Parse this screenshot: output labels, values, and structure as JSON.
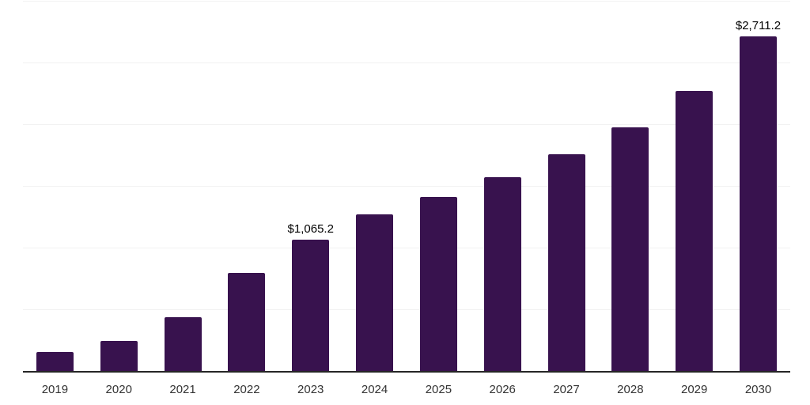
{
  "chart_style": {
    "bar_color": "#38124E",
    "axis_color": "#262626",
    "gridline_color": "#F2F2F2",
    "x_label_color": "#333333",
    "data_label_color": "#000000",
    "background_color": "#FFFFFF"
  },
  "chart_data": {
    "type": "bar",
    "title": "",
    "xlabel": "",
    "ylabel": "",
    "categories": [
      "2019",
      "2020",
      "2021",
      "2022",
      "2023",
      "2024",
      "2025",
      "2026",
      "2027",
      "2028",
      "2029",
      "2030"
    ],
    "values": [
      153,
      241,
      433,
      794,
      1065.2,
      1267,
      1408,
      1572,
      1759,
      1976,
      2268,
      2711.2
    ],
    "data_labels": {
      "2023": "$1,065.2",
      "2030": "$2,711.2"
    },
    "ylim": [
      0,
      3000
    ],
    "grid": true,
    "grid_step": 500,
    "y_tick_labels_visible": false,
    "legend": false
  }
}
